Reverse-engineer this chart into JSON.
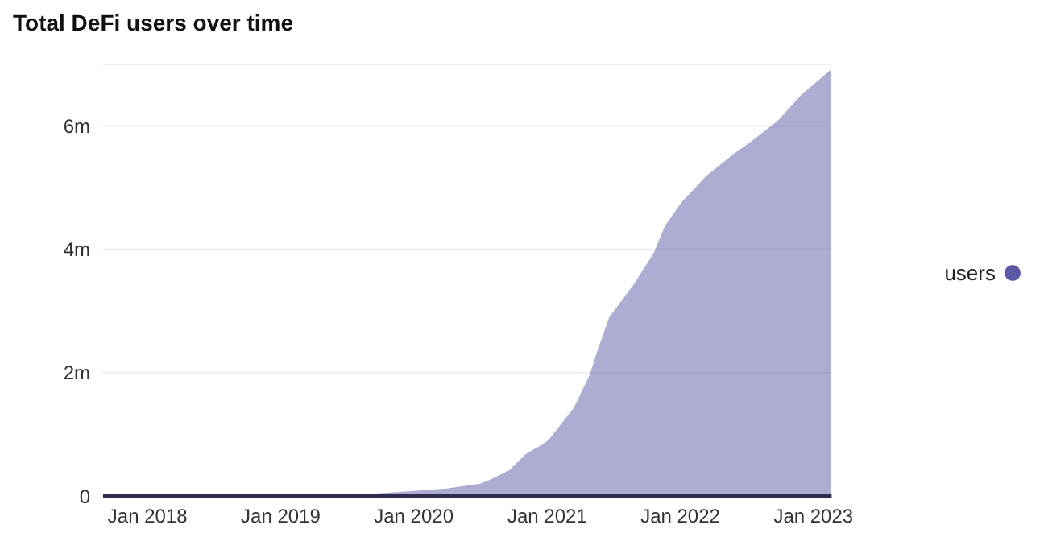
{
  "chart_data": {
    "type": "area",
    "title": "Total DeFi users over time",
    "x": [
      "2017-09-01",
      "2019-06-01",
      "2019-07-27",
      "2020-01-01",
      "2020-04-01",
      "2020-07-01",
      "2020-07-24",
      "2020-09-20",
      "2020-11-03",
      "2020-12-17",
      "2021-01-05",
      "2021-03-15",
      "2021-04-27",
      "2021-05-20",
      "2021-06-20",
      "2021-08-25",
      "2021-10-20",
      "2021-11-20",
      "2022-01-05",
      "2022-03-15",
      "2022-05-30",
      "2022-07-12",
      "2022-09-24",
      "2022-12-01",
      "2023-02-17"
    ],
    "series": [
      {
        "name": "users",
        "color": "#5b59a5",
        "values": [
          0,
          0,
          20000,
          80000,
          120000,
          200000,
          250000,
          420000,
          680000,
          830000,
          910000,
          1430000,
          1960000,
          2380000,
          2900000,
          3420000,
          3940000,
          4380000,
          4770000,
          5200000,
          5560000,
          5740000,
          6080000,
          6520000,
          6910000
        ]
      }
    ],
    "xlim": [
      "2017-09-01",
      "2023-02-20"
    ],
    "xticks": [
      {
        "value": "2018-01-01",
        "label": "Jan 2018"
      },
      {
        "value": "2019-01-01",
        "label": "Jan 2019"
      },
      {
        "value": "2020-01-01",
        "label": "Jan 2020"
      },
      {
        "value": "2021-01-01",
        "label": "Jan 2021"
      },
      {
        "value": "2022-01-01",
        "label": "Jan 2022"
      },
      {
        "value": "2023-01-01",
        "label": "Jan 2023"
      }
    ],
    "ylim": [
      0,
      7000000
    ],
    "yticks": [
      {
        "value": 0,
        "label": "0"
      },
      {
        "value": 2000000,
        "label": "2m"
      },
      {
        "value": 4000000,
        "label": "4m"
      },
      {
        "value": 6000000,
        "label": "6m"
      }
    ],
    "grid": "y",
    "legend": "right"
  }
}
